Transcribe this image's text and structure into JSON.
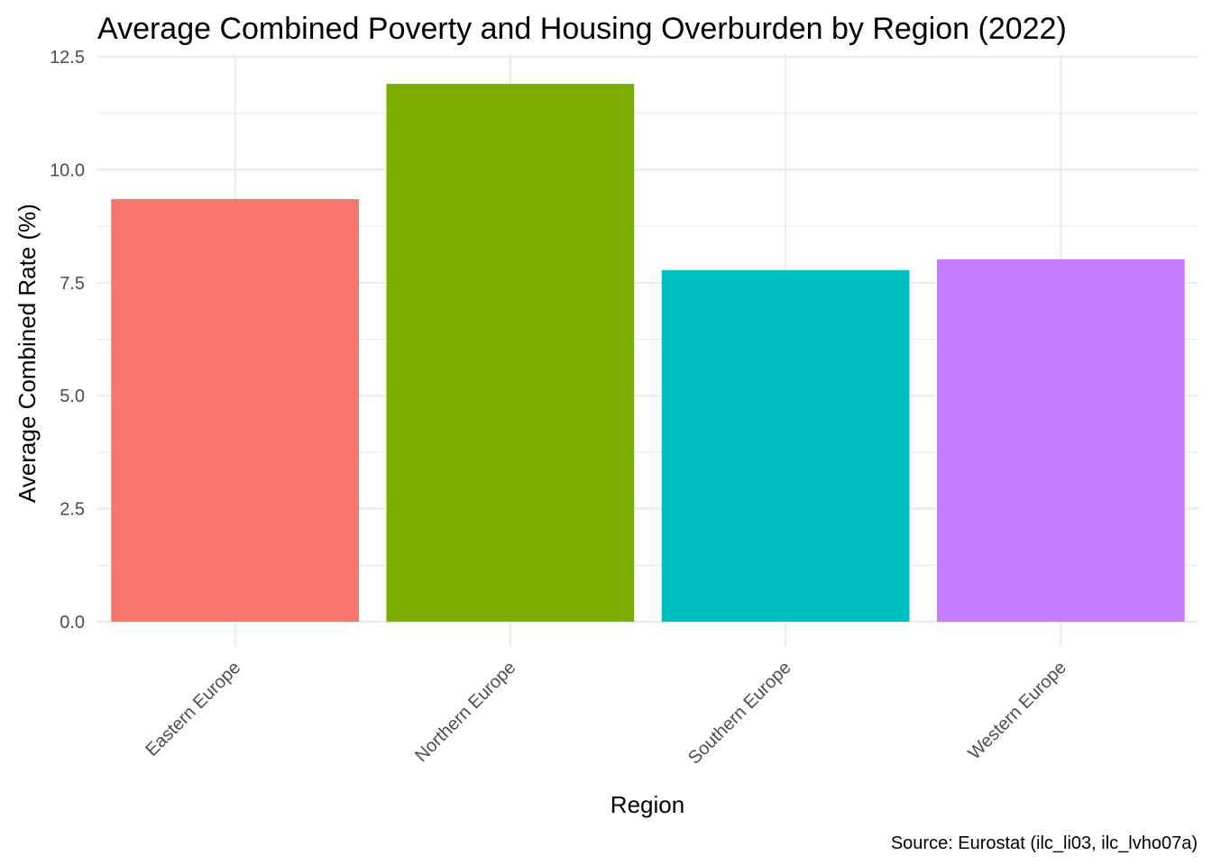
{
  "chart_data": {
    "type": "bar",
    "title": "Average Combined Poverty and Housing Overburden by Region (2022)",
    "xlabel": "Region",
    "ylabel": "Average Combined Rate (%)",
    "caption": "Source: Eurostat (ilc_li03, ilc_lvho07a)",
    "categories": [
      "Eastern Europe",
      "Northern Europe",
      "Southern Europe",
      "Western Europe"
    ],
    "values": [
      9.35,
      11.9,
      7.78,
      8.02
    ],
    "colors": [
      "#F8766D",
      "#7CAE00",
      "#00BFC4",
      "#C77CFF"
    ],
    "ylim": [
      0,
      12.5
    ],
    "yticks": [
      0,
      2.5,
      5,
      7.5,
      10,
      12.5
    ],
    "ytick_labels": [
      "0.0",
      "2.5",
      "5.0",
      "7.5",
      "10.0",
      "12.5"
    ],
    "grid": true,
    "legend": "none",
    "x_tick_rotation": -45
  }
}
